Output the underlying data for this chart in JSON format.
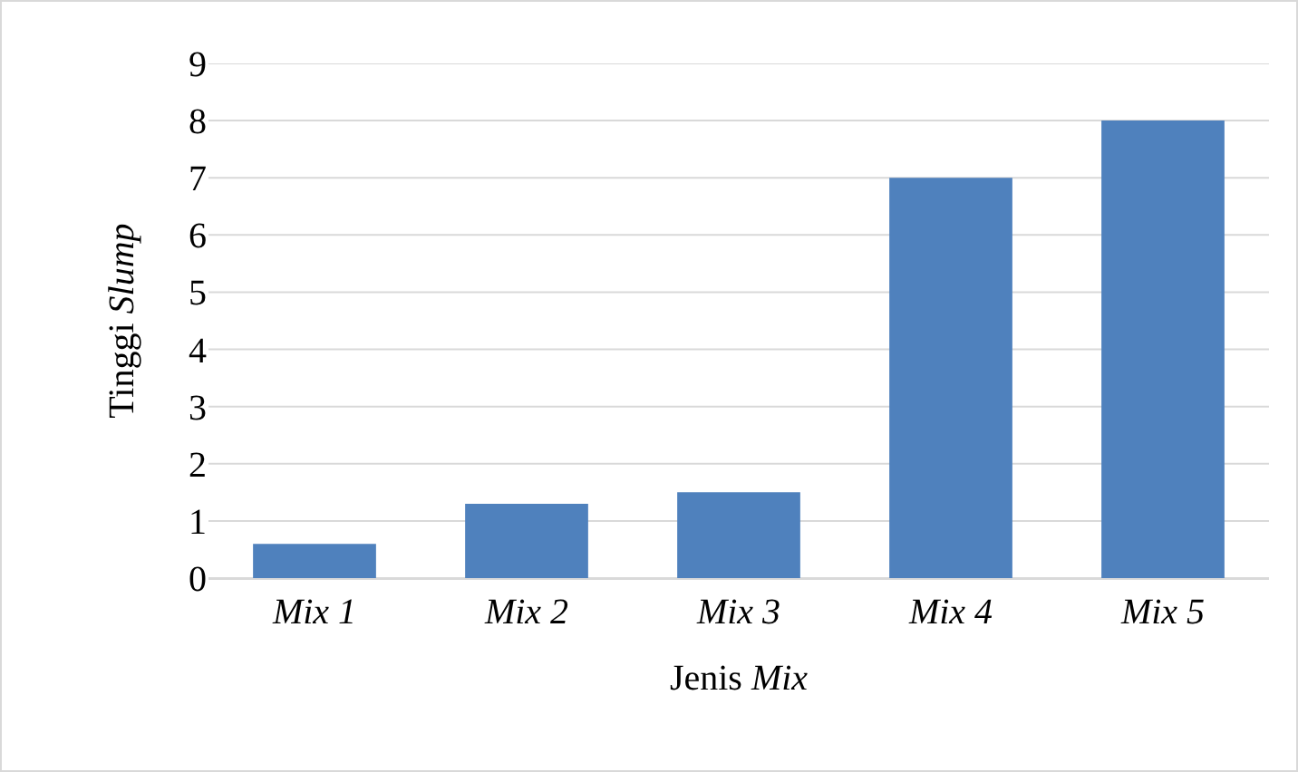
{
  "chart_data": {
    "type": "bar",
    "xlabel": "Jenis Mix",
    "ylabel": "Tinggi Slump",
    "categories": [
      "Mix 1",
      "Mix 2",
      "Mix 3",
      "Mix 4",
      "Mix 5"
    ],
    "values": [
      0.6,
      1.3,
      1.5,
      7,
      8
    ],
    "color": "#4f81bd",
    "ylim": [
      0,
      9
    ],
    "yticks": [
      0,
      1,
      2,
      3,
      4,
      5,
      6,
      7,
      8,
      9
    ],
    "grid": "y"
  }
}
